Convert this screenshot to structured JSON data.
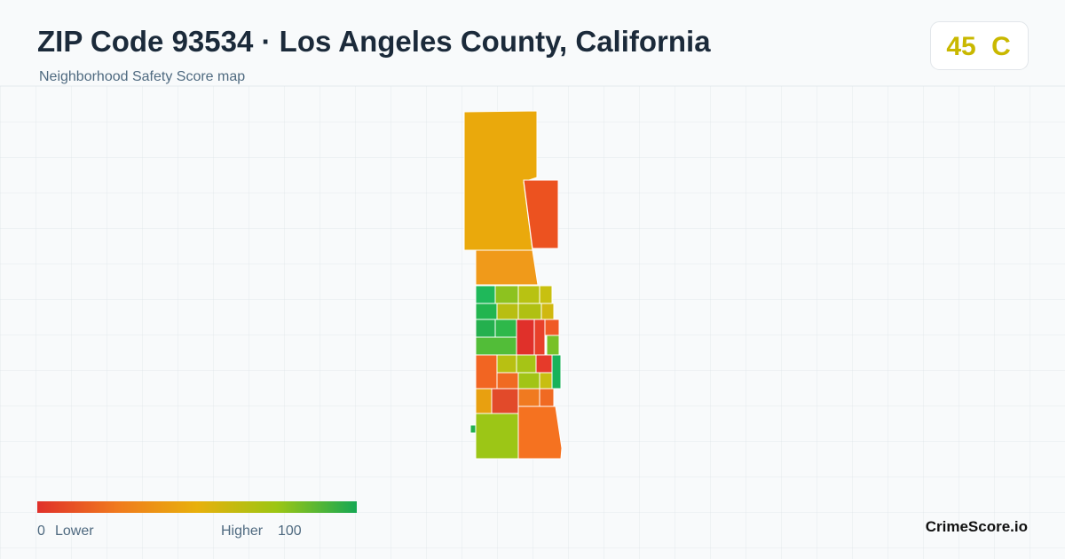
{
  "header": {
    "title": "ZIP Code 93534 · Los Angeles County, California",
    "subtitle": "Neighborhood Safety Score map"
  },
  "badge": {
    "score": 45,
    "grade": "C"
  },
  "legend": {
    "min": 0,
    "min_label": "Lower",
    "max_label": "Higher",
    "max": 100
  },
  "footer": {
    "brand": "CrimeScore.io"
  }
}
